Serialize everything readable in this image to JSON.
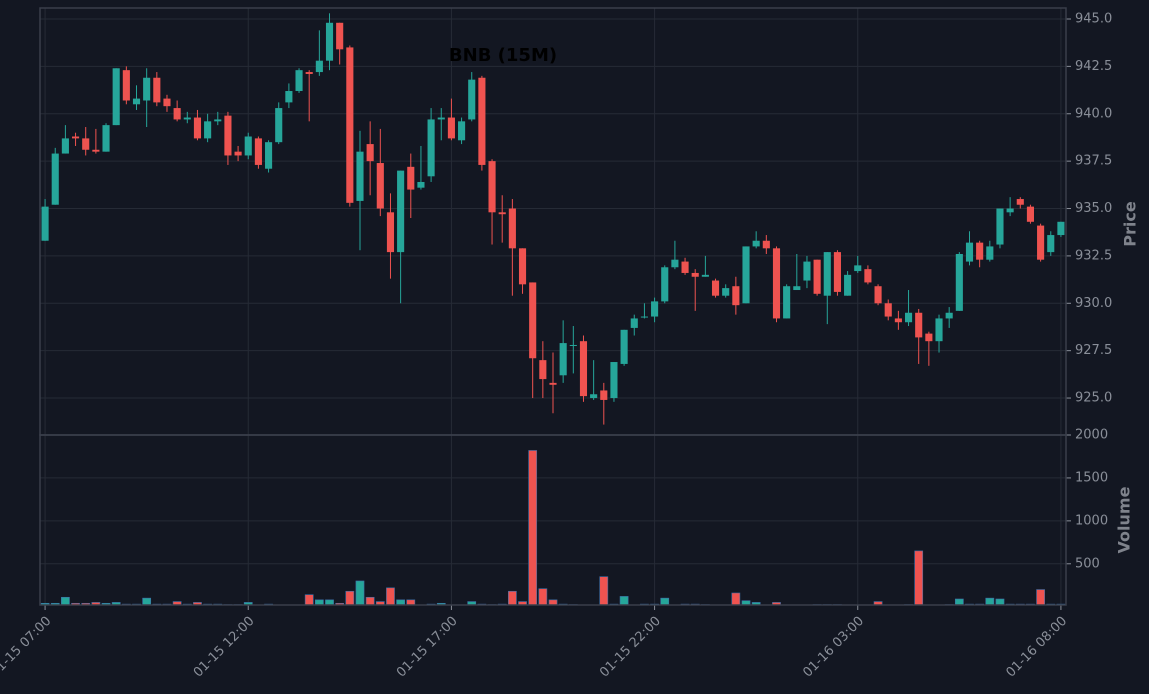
{
  "chart_data": {
    "type": "candlestick",
    "title": "BNB (15M)",
    "categories": [
      "01-15 07:00",
      null,
      null,
      null,
      null,
      null,
      null,
      null,
      null,
      null,
      null,
      null,
      null,
      null,
      null,
      null,
      null,
      null,
      null,
      null,
      "01-15 12:00",
      null,
      null,
      null,
      null,
      null,
      null,
      null,
      null,
      null,
      null,
      null,
      null,
      null,
      null,
      null,
      null,
      null,
      null,
      null,
      "01-15 17:00",
      null,
      null,
      null,
      null,
      null,
      null,
      null,
      null,
      null,
      null,
      null,
      null,
      null,
      null,
      null,
      null,
      null,
      null,
      null,
      "01-15 22:00",
      null,
      null,
      null,
      null,
      null,
      null,
      null,
      null,
      null,
      null,
      null,
      null,
      null,
      null,
      null,
      null,
      null,
      null,
      null,
      "01-16 03:00",
      null,
      null,
      null,
      null,
      null,
      null,
      null,
      null,
      null,
      null,
      null,
      null,
      null,
      null,
      null,
      null,
      null,
      null,
      null,
      "01-16 08:00"
    ],
    "open": [
      933.3,
      935.2,
      937.9,
      938.8,
      938.7,
      938.1,
      938.0,
      939.4,
      942.3,
      940.5,
      940.7,
      941.9,
      940.8,
      940.3,
      939.7,
      939.8,
      938.7,
      939.6,
      939.9,
      938.0,
      937.8,
      938.7,
      937.1,
      938.5,
      940.6,
      941.2,
      942.2,
      942.2,
      942.8,
      944.8,
      943.5,
      935.4,
      938.4,
      937.4,
      934.8,
      932.7,
      937.2,
      936.1,
      936.7,
      939.7,
      939.8,
      938.6,
      939.7,
      941.9,
      937.5,
      934.8,
      935.0,
      932.9,
      931.1,
      927.0,
      925.8,
      926.2,
      927.8,
      928.0,
      925.0,
      925.4,
      925.0,
      926.8,
      928.7,
      929.3,
      929.3,
      930.1,
      931.9,
      932.2,
      931.6,
      931.4,
      931.2,
      930.4,
      930.9,
      930.0,
      933.0,
      933.3,
      932.9,
      929.2,
      930.7,
      931.2,
      932.3,
      930.4,
      932.7,
      930.4,
      931.7,
      931.8,
      930.9,
      930.0,
      929.2,
      929.0,
      929.5,
      928.4,
      928.0,
      929.2,
      929.6,
      932.2,
      933.2,
      932.3,
      933.1,
      934.8,
      935.5,
      935.1,
      934.1,
      932.7,
      933.6
    ],
    "high": [
      935.5,
      938.2,
      939.4,
      939.0,
      939.3,
      939.2,
      939.5,
      942.4,
      942.5,
      941.5,
      942.4,
      942.2,
      941.0,
      940.7,
      940.1,
      940.2,
      940.0,
      940.1,
      940.1,
      938.3,
      939.0,
      938.8,
      938.6,
      940.6,
      941.6,
      942.4,
      942.3,
      944.4,
      945.3,
      944.8,
      943.6,
      939.1,
      939.6,
      939.2,
      935.8,
      937.0,
      937.9,
      938.3,
      940.3,
      940.3,
      940.8,
      939.8,
      942.2,
      942.0,
      937.6,
      935.7,
      935.5,
      932.9,
      931.1,
      928.0,
      927.4,
      929.1,
      928.8,
      928.3,
      927.0,
      925.8,
      926.9,
      928.6,
      929.4,
      930.0,
      930.3,
      932.0,
      933.3,
      932.4,
      931.8,
      932.5,
      931.3,
      931.0,
      931.4,
      933.0,
      933.8,
      933.6,
      933.0,
      931.0,
      932.6,
      932.5,
      932.3,
      932.7,
      932.8,
      931.7,
      932.5,
      932.0,
      931.0,
      930.2,
      929.6,
      930.7,
      929.7,
      928.5,
      929.4,
      929.8,
      932.7,
      933.8,
      933.3,
      933.3,
      935.0,
      935.6,
      935.6,
      935.2,
      934.2,
      933.8,
      934.3
    ],
    "low": [
      933.3,
      935.2,
      937.9,
      938.3,
      937.8,
      937.9,
      938.0,
      939.4,
      940.5,
      940.2,
      939.3,
      940.4,
      940.1,
      939.6,
      939.5,
      938.6,
      938.5,
      939.4,
      937.3,
      937.5,
      937.6,
      937.1,
      936.9,
      938.4,
      940.3,
      941.1,
      939.6,
      942.0,
      942.3,
      942.6,
      935.1,
      932.8,
      935.7,
      934.6,
      931.3,
      930.0,
      934.5,
      936.0,
      936.4,
      938.6,
      938.6,
      938.4,
      939.6,
      937.0,
      933.1,
      933.2,
      930.4,
      930.5,
      925.0,
      925.0,
      924.2,
      925.8,
      926.3,
      924.8,
      924.9,
      923.6,
      924.8,
      926.7,
      928.3,
      929.2,
      929.0,
      930.0,
      931.8,
      931.5,
      929.6,
      931.4,
      930.3,
      930.3,
      929.4,
      930.0,
      932.9,
      932.6,
      929.0,
      929.2,
      930.7,
      930.8,
      930.4,
      928.9,
      930.4,
      930.4,
      931.6,
      931.0,
      929.9,
      929.1,
      928.6,
      928.8,
      926.8,
      926.7,
      927.4,
      928.7,
      929.6,
      932.0,
      931.9,
      932.2,
      932.9,
      934.6,
      935.0,
      934.2,
      932.2,
      932.5,
      933.5
    ],
    "close": [
      935.1,
      937.9,
      938.7,
      938.7,
      938.1,
      938.0,
      939.4,
      942.4,
      940.7,
      940.8,
      941.9,
      940.6,
      940.4,
      939.7,
      939.8,
      938.7,
      939.6,
      939.7,
      937.8,
      937.8,
      938.8,
      937.3,
      938.5,
      940.3,
      941.2,
      942.3,
      942.1,
      942.8,
      944.8,
      943.4,
      935.3,
      938.0,
      937.5,
      935.0,
      932.7,
      937.0,
      936.0,
      936.4,
      939.7,
      939.8,
      938.7,
      939.6,
      941.8,
      937.3,
      934.8,
      934.7,
      932.9,
      931.0,
      927.1,
      926.0,
      925.7,
      927.9,
      927.8,
      925.1,
      925.2,
      924.9,
      926.9,
      928.6,
      929.2,
      929.3,
      930.1,
      931.9,
      932.3,
      931.6,
      931.4,
      931.5,
      930.4,
      930.8,
      929.9,
      933.0,
      933.3,
      932.9,
      929.2,
      930.9,
      930.9,
      932.2,
      930.5,
      932.7,
      930.6,
      931.5,
      932.0,
      931.1,
      930.0,
      929.3,
      929.0,
      929.5,
      928.2,
      928.0,
      929.2,
      929.5,
      932.6,
      933.2,
      932.3,
      933.0,
      935.0,
      935.0,
      935.2,
      934.3,
      932.3,
      933.6,
      934.3
    ],
    "up_color": "#26a69a",
    "down_color": "#ef5350",
    "ylabel": "Price",
    "ylim": [
      923.05,
      945.58
    ],
    "yticks": [
      {
        "value": 925,
        "label": "925.0"
      },
      {
        "value": 927.5,
        "label": "927.5"
      },
      {
        "value": 930,
        "label": "930.0"
      },
      {
        "value": 932.5,
        "label": "932.5"
      },
      {
        "value": 935,
        "label": "935.0"
      },
      {
        "value": 937.5,
        "label": "937.5"
      },
      {
        "value": 940,
        "label": "940.0"
      },
      {
        "value": 942.5,
        "label": "942.5"
      },
      {
        "value": 945,
        "label": "945.0"
      }
    ],
    "grid": true,
    "volume": {
      "ylabel": "Volume",
      "values": [
        40,
        40,
        110,
        40,
        40,
        50,
        40,
        50,
        30,
        30,
        100,
        30,
        30,
        60,
        30,
        50,
        30,
        30,
        25,
        25,
        50,
        20,
        30,
        20,
        20,
        20,
        140,
        80,
        80,
        40,
        180,
        300,
        110,
        60,
        220,
        80,
        80,
        20,
        30,
        40,
        20,
        20,
        60,
        30,
        25,
        30,
        180,
        60,
        1820,
        210,
        80,
        30,
        25,
        20,
        20,
        350,
        30,
        120,
        20,
        30,
        30,
        100,
        20,
        30,
        30,
        25,
        20,
        20,
        160,
        70,
        50,
        20,
        50,
        20,
        20,
        20,
        25,
        25,
        25,
        20,
        20,
        20,
        60,
        20,
        20,
        25,
        650,
        20,
        20,
        25,
        90,
        30,
        30,
        100,
        90,
        30,
        30,
        30,
        200,
        30,
        30
      ],
      "ylim": [
        20,
        2000
      ],
      "yticks": [
        500,
        1000,
        1500,
        2000
      ]
    }
  }
}
